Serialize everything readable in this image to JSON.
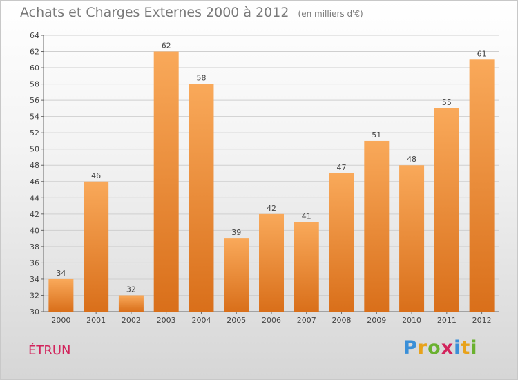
{
  "header": {
    "title": "Achats et Charges Externes 2000 à 2012",
    "subtitle": "(en milliers d'€)"
  },
  "footer": {
    "commune": "ÉTRUN",
    "brand_letters": [
      "P",
      "r",
      "o",
      "x",
      "i",
      "t",
      "i"
    ]
  },
  "colors": {
    "bar_light": "#f9a95a",
    "bar_dark": "#d96f1a",
    "grid": "#cfcfcf"
  },
  "chart_data": {
    "type": "bar",
    "title": "Achats et Charges Externes 2000 à 2012",
    "subtitle": "(en milliers d'€)",
    "categories": [
      "2000",
      "2001",
      "2002",
      "2003",
      "2004",
      "2005",
      "2006",
      "2007",
      "2008",
      "2009",
      "2010",
      "2011",
      "2012"
    ],
    "values": [
      34,
      46,
      32,
      62,
      58,
      39,
      42,
      41,
      47,
      51,
      48,
      55,
      61
    ],
    "ylim": [
      30,
      64
    ],
    "yticks": [
      30,
      32,
      34,
      36,
      38,
      40,
      42,
      44,
      46,
      48,
      50,
      52,
      54,
      56,
      58,
      60,
      62,
      64
    ],
    "grid": true,
    "xlabel": "",
    "ylabel": ""
  }
}
